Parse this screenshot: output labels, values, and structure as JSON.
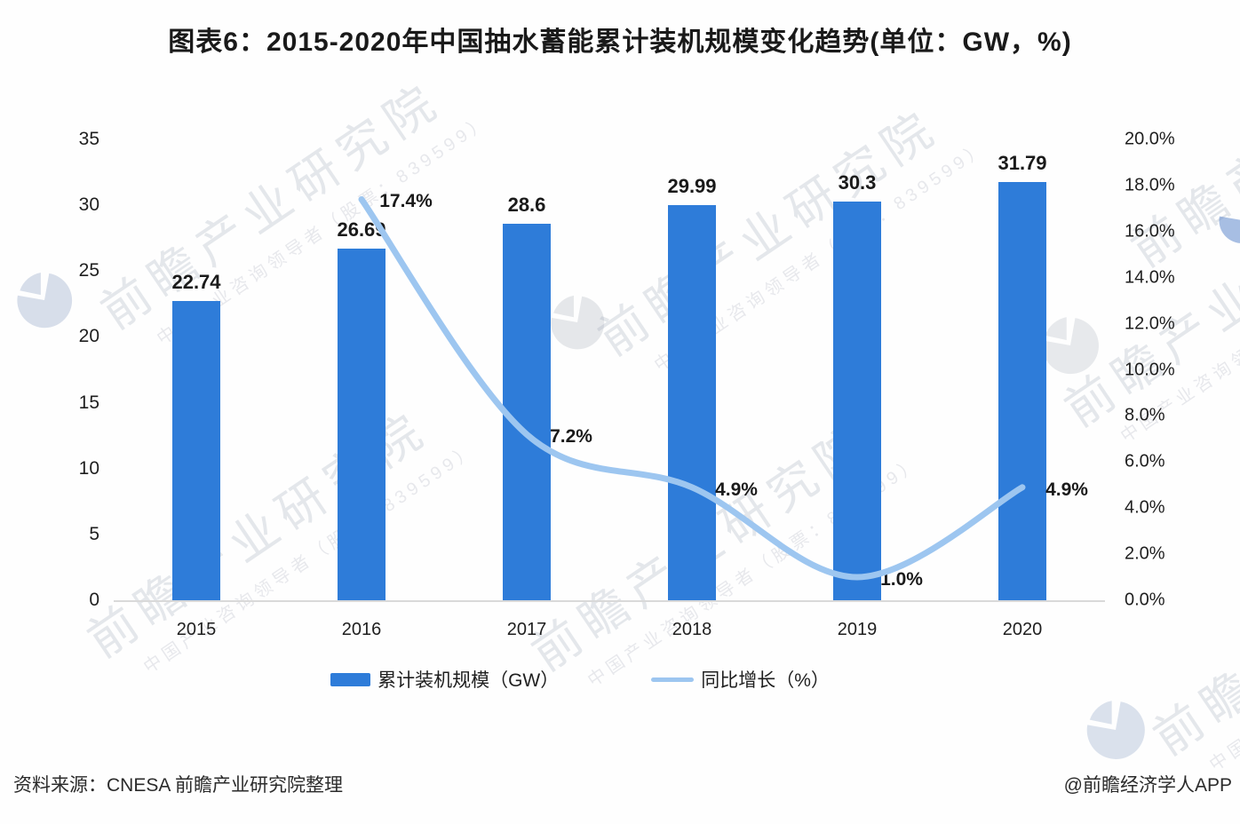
{
  "title": "图表6：2015-2020年中国抽水蓄能累计装机规模变化趋势(单位：GW，%)",
  "chart_data": {
    "type": "bar+line combo",
    "categories": [
      "2015",
      "2016",
      "2017",
      "2018",
      "2019",
      "2020"
    ],
    "series": [
      {
        "name": "累计装机规模（GW）",
        "type": "bar",
        "axis": "left",
        "values": [
          22.74,
          26.69,
          28.6,
          29.99,
          30.3,
          31.79
        ],
        "labels": [
          "22.74",
          "26.69",
          "28.6",
          "29.99",
          "30.3",
          "31.79"
        ]
      },
      {
        "name": "同比增长（%）",
        "type": "line",
        "axis": "right",
        "values": [
          null,
          17.4,
          7.2,
          4.9,
          1.0,
          4.9
        ],
        "labels": [
          "",
          "17.4%",
          "7.2%",
          "4.9%",
          "1.0%",
          "4.9%"
        ]
      }
    ],
    "left_axis": {
      "min": 0,
      "max": 35,
      "ticks": [
        "35",
        "30",
        "25",
        "20",
        "15",
        "10",
        "5",
        "0"
      ]
    },
    "right_axis": {
      "min": 0,
      "max": 20,
      "ticks": [
        "20.0%",
        "18.0%",
        "16.0%",
        "14.0%",
        "12.0%",
        "10.0%",
        "8.0%",
        "6.0%",
        "4.0%",
        "2.0%",
        "0.0%"
      ]
    },
    "grid": false,
    "legend_position": "bottom"
  },
  "footer": {
    "source": "资料来源：CNESA 前瞻产业研究院整理",
    "credit": "@前瞻经济学人APP"
  },
  "watermark": {
    "main": "前瞻产业研究院",
    "sub": "中国产业咨询领导者（股票：839599）"
  },
  "colors": {
    "bar": "#2e7cd9",
    "line": "#9dc6f0",
    "axis_line": "#d9d9d9",
    "text": "#1a1a1a"
  }
}
